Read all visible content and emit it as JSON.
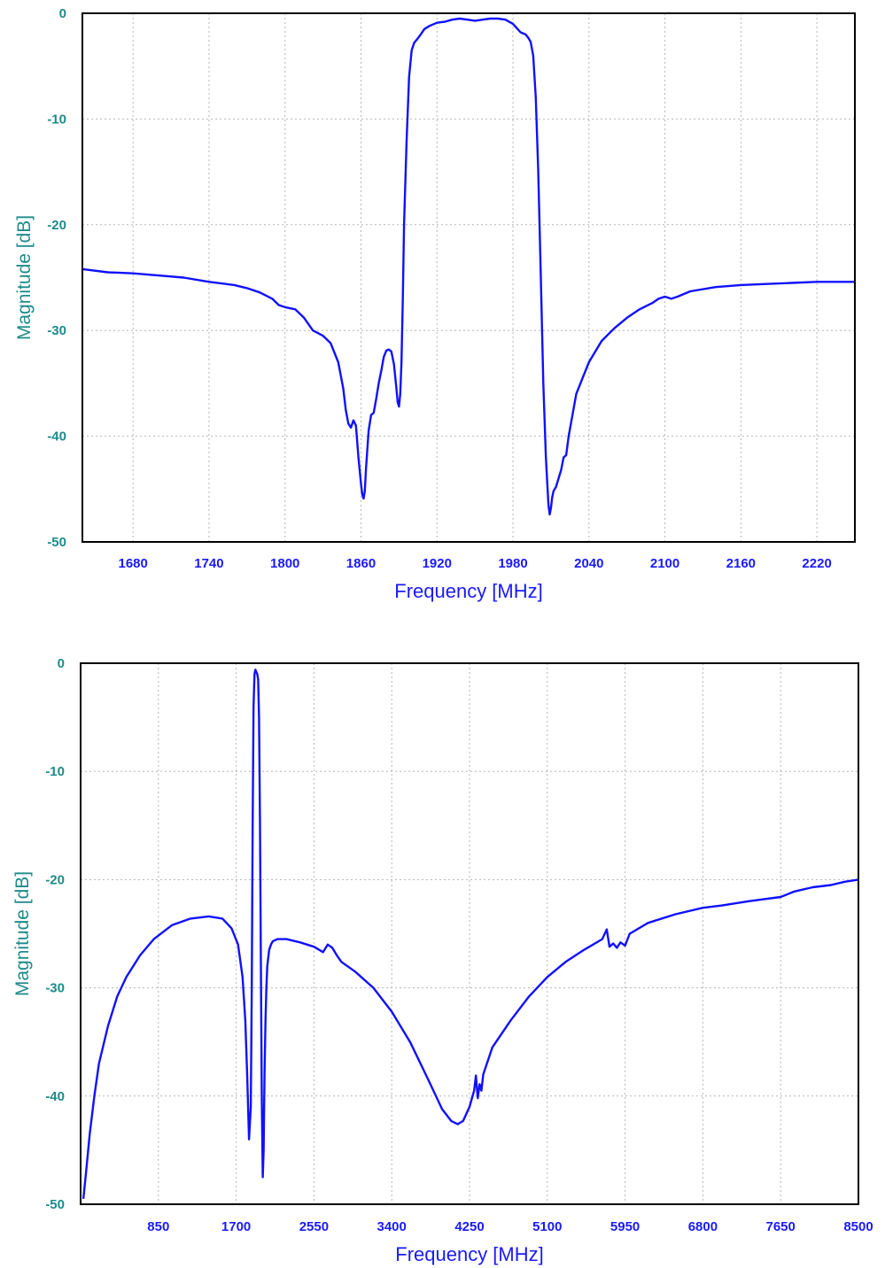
{
  "colors": {
    "trace": "#1010ff",
    "yaxis_text": "#1f8a8a",
    "xaxis_text": "#1a1aff",
    "grid": "#b5b5b5"
  },
  "chart_data": [
    {
      "type": "line",
      "title": "",
      "xlabel": "Frequency [MHz]",
      "ylabel": "Magnitude [dB]",
      "xlim": [
        1640,
        2250
      ],
      "ylim": [
        -50,
        0
      ],
      "grid": true,
      "xticks": [
        1680,
        1740,
        1800,
        1860,
        1920,
        1980,
        2040,
        2100,
        2160,
        2220
      ],
      "yticks": [
        0,
        -10,
        -20,
        -30,
        -40,
        -50
      ],
      "series": [
        {
          "x": [
            1640,
            1660,
            1680,
            1700,
            1720,
            1740,
            1760,
            1770,
            1780,
            1790,
            1795,
            1800,
            1808,
            1815,
            1822,
            1830,
            1836,
            1842,
            1846,
            1848,
            1850,
            1852,
            1854,
            1856,
            1858,
            1860,
            1861,
            1862,
            1863,
            1864,
            1866,
            1868,
            1870,
            1872,
            1874,
            1876,
            1878,
            1880,
            1882,
            1884,
            1886,
            1888,
            1889,
            1890,
            1891,
            1892,
            1893,
            1894,
            1896,
            1898,
            1900,
            1902,
            1904,
            1906,
            1910,
            1914,
            1920,
            1926,
            1932,
            1938,
            1944,
            1950,
            1956,
            1962,
            1968,
            1974,
            1980,
            1986,
            1990,
            1992,
            1994,
            1996,
            1998,
            2000,
            2002,
            2004,
            2006,
            2008,
            2009,
            2010,
            2011,
            2012,
            2014,
            2016,
            2018,
            2020,
            2022,
            2024,
            2030,
            2040,
            2050,
            2060,
            2070,
            2080,
            2090,
            2095,
            2100,
            2105,
            2110,
            2120,
            2140,
            2160,
            2180,
            2200,
            2220,
            2250
          ],
          "y": [
            -24.2,
            -24.5,
            -24.6,
            -24.8,
            -25.0,
            -25.4,
            -25.7,
            -26.0,
            -26.4,
            -27.0,
            -27.6,
            -27.8,
            -28.0,
            -28.8,
            -30.0,
            -30.5,
            -31.2,
            -33.0,
            -35.5,
            -37.5,
            -38.8,
            -39.2,
            -38.5,
            -39.0,
            -42.0,
            -44.5,
            -45.5,
            -45.9,
            -45.2,
            -43.0,
            -39.5,
            -38.0,
            -37.8,
            -36.5,
            -35.0,
            -33.8,
            -32.5,
            -31.9,
            -31.8,
            -32.0,
            -33.2,
            -35.5,
            -36.8,
            -37.2,
            -36.0,
            -33.0,
            -27.0,
            -20.0,
            -12.0,
            -6.0,
            -3.5,
            -2.8,
            -2.5,
            -2.2,
            -1.5,
            -1.2,
            -0.9,
            -0.8,
            -0.6,
            -0.5,
            -0.6,
            -0.7,
            -0.6,
            -0.5,
            -0.5,
            -0.6,
            -1.0,
            -1.8,
            -2.0,
            -2.3,
            -2.7,
            -4.0,
            -8.0,
            -15.0,
            -25.0,
            -35.0,
            -42.0,
            -46.5,
            -47.4,
            -46.8,
            -45.8,
            -45.2,
            -44.8,
            -44.0,
            -43.2,
            -42.0,
            -41.8,
            -40.0,
            -36.0,
            -33.0,
            -31.0,
            -29.8,
            -28.8,
            -28.0,
            -27.4,
            -27.0,
            -26.8,
            -27.0,
            -26.8,
            -26.3,
            -25.9,
            -25.7,
            -25.6,
            -25.5,
            -25.4,
            -25.4
          ]
        }
      ]
    },
    {
      "type": "line",
      "title": "",
      "xlabel": "Frequency [MHz]",
      "ylabel": "Magnitude [dB]",
      "xlim": [
        0,
        8500
      ],
      "ylim": [
        -50,
        0
      ],
      "grid": true,
      "xticks": [
        850,
        1700,
        2550,
        3400,
        4250,
        5100,
        5950,
        6800,
        7650,
        8500
      ],
      "yticks": [
        0,
        -10,
        -20,
        -30,
        -40,
        -50
      ],
      "series": [
        {
          "x": [
            30,
            60,
            100,
            150,
            200,
            300,
            400,
            500,
            650,
            800,
            1000,
            1200,
            1400,
            1550,
            1650,
            1720,
            1770,
            1800,
            1820,
            1840,
            1860,
            1870,
            1880,
            1890,
            1900,
            1910,
            1920,
            1930,
            1940,
            1950,
            1960,
            1970,
            1980,
            1990,
            2000,
            2010,
            2020,
            2030,
            2040,
            2060,
            2080,
            2100,
            2150,
            2250,
            2400,
            2550,
            2650,
            2700,
            2750,
            2800,
            2850,
            3000,
            3200,
            3400,
            3600,
            3800,
            3950,
            4050,
            4120,
            4180,
            4250,
            4300,
            4320,
            4340,
            4360,
            4380,
            4400,
            4500,
            4700,
            4900,
            5100,
            5300,
            5500,
            5700,
            5750,
            5780,
            5820,
            5860,
            5900,
            5950,
            6000,
            6200,
            6500,
            6800,
            7000,
            7300,
            7650,
            7800,
            8000,
            8200,
            8350,
            8500
          ],
          "y": [
            -49.5,
            -47.0,
            -43.5,
            -40.0,
            -37.0,
            -33.5,
            -30.8,
            -29.0,
            -27.0,
            -25.5,
            -24.2,
            -23.6,
            -23.4,
            -23.6,
            -24.5,
            -26.0,
            -29.0,
            -33.0,
            -38.0,
            -44.0,
            -41.0,
            -30.0,
            -15.0,
            -4.0,
            -1.0,
            -0.6,
            -0.8,
            -1.0,
            -1.5,
            -5.0,
            -15.0,
            -28.0,
            -40.0,
            -47.5,
            -45.0,
            -38.0,
            -33.0,
            -30.0,
            -28.0,
            -26.5,
            -26.0,
            -25.7,
            -25.5,
            -25.5,
            -25.8,
            -26.2,
            -26.7,
            -26.0,
            -26.3,
            -27.0,
            -27.6,
            -28.5,
            -30.0,
            -32.2,
            -35.0,
            -38.5,
            -41.2,
            -42.3,
            -42.6,
            -42.3,
            -41.0,
            -39.5,
            -38.1,
            -40.2,
            -38.9,
            -39.5,
            -38.0,
            -35.5,
            -33.0,
            -30.8,
            -29.0,
            -27.6,
            -26.5,
            -25.5,
            -24.6,
            -26.2,
            -25.9,
            -26.3,
            -25.8,
            -26.1,
            -25.0,
            -24.0,
            -23.2,
            -22.6,
            -22.4,
            -22.0,
            -21.6,
            -21.1,
            -20.7,
            -20.5,
            -20.2,
            -20.0
          ]
        }
      ]
    }
  ]
}
